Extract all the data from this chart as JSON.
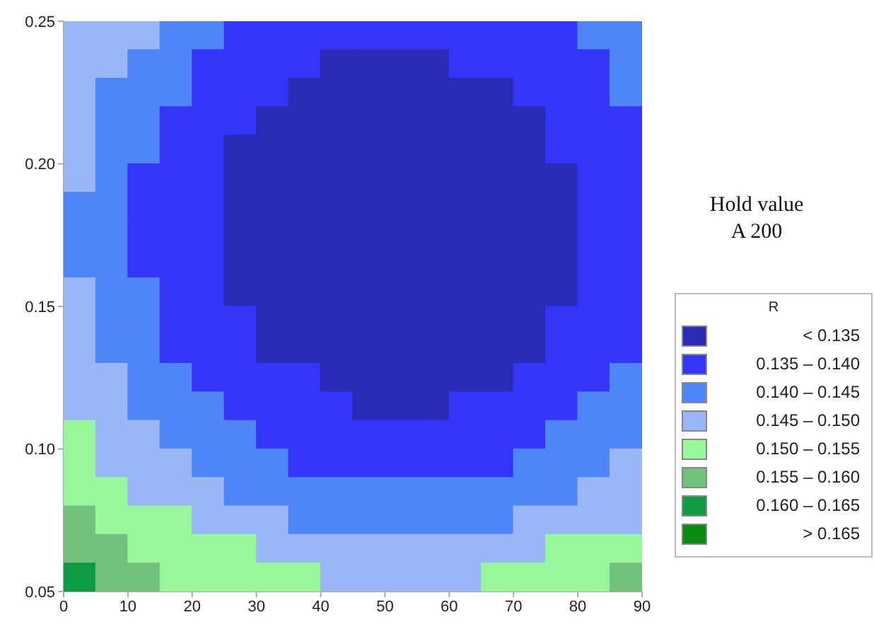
{
  "chart_data": {
    "type": "heatmap",
    "annotations": [
      "Hold value",
      "A 200"
    ],
    "clabel": "R",
    "clim": [
      0.13,
      0.17
    ],
    "cticks": [
      {
        "value": 0.1325,
        "label": "< 0.135"
      },
      {
        "value": 0.1375,
        "label": "0.135 – 0.140"
      },
      {
        "value": 0.1425,
        "label": "0.140 – 0.145"
      },
      {
        "value": 0.1475,
        "label": "0.145 – 0.150"
      },
      {
        "value": 0.1525,
        "label": "0.150 – 0.155"
      },
      {
        "value": 0.1575,
        "label": "0.155 – 0.160"
      },
      {
        "value": 0.1625,
        "label": "0.160 – 0.165"
      },
      {
        "value": 0.1675,
        "label": "> 0.165"
      }
    ],
    "colors": [
      "#2a2ab5",
      "#3535fa",
      "#4f86f7",
      "#9ab6f7",
      "#98f79a",
      "#72c17c",
      "#0f9a44",
      "#0a8a12"
    ],
    "xlim": [
      0,
      90
    ],
    "xticks": [
      0,
      10,
      20,
      30,
      40,
      50,
      60,
      70,
      80,
      90
    ],
    "ylim": [
      0.05,
      0.25
    ],
    "yticks": [
      {
        "value": 0.05,
        "label": "0.05"
      },
      {
        "value": 0.1,
        "label": "0.10"
      },
      {
        "value": 0.15,
        "label": "0.15"
      },
      {
        "value": 0.2,
        "label": "0.20"
      },
      {
        "value": 0.25,
        "label": "0.25"
      }
    ],
    "cells": [
      [
        0.1475,
        0.1475,
        0.1475,
        0.1425,
        0.1425,
        0.1375,
        0.1375,
        0.1375,
        0.1375,
        0.1375,
        0.1375,
        0.1375,
        0.1375,
        0.1375,
        0.1375,
        0.1375,
        0.1425,
        0.1425
      ],
      [
        0.1475,
        0.1475,
        0.1425,
        0.1425,
        0.1375,
        0.1375,
        0.1375,
        0.1375,
        0.1325,
        0.1325,
        0.1325,
        0.1325,
        0.1375,
        0.1375,
        0.1375,
        0.1375,
        0.1375,
        0.1425
      ],
      [
        0.1475,
        0.1425,
        0.1425,
        0.1425,
        0.1375,
        0.1375,
        0.1375,
        0.1325,
        0.1325,
        0.1325,
        0.1325,
        0.1325,
        0.1325,
        0.1325,
        0.1375,
        0.1375,
        0.1375,
        0.1425
      ],
      [
        0.1475,
        0.1425,
        0.1425,
        0.1375,
        0.1375,
        0.1375,
        0.1325,
        0.1325,
        0.1325,
        0.1325,
        0.1325,
        0.1325,
        0.1325,
        0.1325,
        0.1325,
        0.1375,
        0.1375,
        0.1375
      ],
      [
        0.1475,
        0.1425,
        0.1425,
        0.1375,
        0.1375,
        0.1325,
        0.1325,
        0.1325,
        0.1325,
        0.1325,
        0.1325,
        0.1325,
        0.1325,
        0.1325,
        0.1325,
        0.1375,
        0.1375,
        0.1375
      ],
      [
        0.1475,
        0.1425,
        0.1375,
        0.1375,
        0.1375,
        0.1325,
        0.1325,
        0.1325,
        0.1325,
        0.1325,
        0.1325,
        0.1325,
        0.1325,
        0.1325,
        0.1325,
        0.1325,
        0.1375,
        0.1375
      ],
      [
        0.1425,
        0.1425,
        0.1375,
        0.1375,
        0.1375,
        0.1325,
        0.1325,
        0.1325,
        0.1325,
        0.1325,
        0.1325,
        0.1325,
        0.1325,
        0.1325,
        0.1325,
        0.1325,
        0.1375,
        0.1375
      ],
      [
        0.1425,
        0.1425,
        0.1375,
        0.1375,
        0.1375,
        0.1325,
        0.1325,
        0.1325,
        0.1325,
        0.1325,
        0.1325,
        0.1325,
        0.1325,
        0.1325,
        0.1325,
        0.1325,
        0.1375,
        0.1375
      ],
      [
        0.1425,
        0.1425,
        0.1375,
        0.1375,
        0.1375,
        0.1325,
        0.1325,
        0.1325,
        0.1325,
        0.1325,
        0.1325,
        0.1325,
        0.1325,
        0.1325,
        0.1325,
        0.1325,
        0.1375,
        0.1375
      ],
      [
        0.1475,
        0.1425,
        0.1425,
        0.1375,
        0.1375,
        0.1325,
        0.1325,
        0.1325,
        0.1325,
        0.1325,
        0.1325,
        0.1325,
        0.1325,
        0.1325,
        0.1325,
        0.1325,
        0.1375,
        0.1375
      ],
      [
        0.1475,
        0.1425,
        0.1425,
        0.1375,
        0.1375,
        0.1375,
        0.1325,
        0.1325,
        0.1325,
        0.1325,
        0.1325,
        0.1325,
        0.1325,
        0.1325,
        0.1325,
        0.1375,
        0.1375,
        0.1375
      ],
      [
        0.1475,
        0.1425,
        0.1425,
        0.1375,
        0.1375,
        0.1375,
        0.1325,
        0.1325,
        0.1325,
        0.1325,
        0.1325,
        0.1325,
        0.1325,
        0.1325,
        0.1325,
        0.1375,
        0.1375,
        0.1375
      ],
      [
        0.1475,
        0.1475,
        0.1425,
        0.1425,
        0.1375,
        0.1375,
        0.1375,
        0.1375,
        0.1325,
        0.1325,
        0.1325,
        0.1325,
        0.1325,
        0.1325,
        0.1375,
        0.1375,
        0.1375,
        0.1425
      ],
      [
        0.1475,
        0.1475,
        0.1425,
        0.1425,
        0.1425,
        0.1375,
        0.1375,
        0.1375,
        0.1375,
        0.1325,
        0.1325,
        0.1325,
        0.1375,
        0.1375,
        0.1375,
        0.1375,
        0.1425,
        0.1425
      ],
      [
        0.1525,
        0.1475,
        0.1475,
        0.1425,
        0.1425,
        0.1425,
        0.1375,
        0.1375,
        0.1375,
        0.1375,
        0.1375,
        0.1375,
        0.1375,
        0.1375,
        0.1375,
        0.1425,
        0.1425,
        0.1425
      ],
      [
        0.1525,
        0.1475,
        0.1475,
        0.1475,
        0.1425,
        0.1425,
        0.1425,
        0.1375,
        0.1375,
        0.1375,
        0.1375,
        0.1375,
        0.1375,
        0.1375,
        0.1425,
        0.1425,
        0.1425,
        0.1475
      ],
      [
        0.1525,
        0.1525,
        0.1475,
        0.1475,
        0.1475,
        0.1425,
        0.1425,
        0.1425,
        0.1425,
        0.1425,
        0.1425,
        0.1425,
        0.1425,
        0.1425,
        0.1425,
        0.1425,
        0.1475,
        0.1475
      ],
      [
        0.1575,
        0.1525,
        0.1525,
        0.1525,
        0.1475,
        0.1475,
        0.1475,
        0.1425,
        0.1425,
        0.1425,
        0.1425,
        0.1425,
        0.1425,
        0.1425,
        0.1475,
        0.1475,
        0.1475,
        0.1475
      ],
      [
        0.1575,
        0.1575,
        0.1525,
        0.1525,
        0.1525,
        0.1525,
        0.1475,
        0.1475,
        0.1475,
        0.1475,
        0.1475,
        0.1475,
        0.1475,
        0.1475,
        0.1475,
        0.1525,
        0.1525,
        0.1525
      ],
      [
        0.1625,
        0.1575,
        0.1575,
        0.1525,
        0.1525,
        0.1525,
        0.1525,
        0.1525,
        0.1475,
        0.1475,
        0.1475,
        0.1475,
        0.1475,
        0.1525,
        0.1525,
        0.1525,
        0.1525,
        0.1575
      ]
    ]
  }
}
